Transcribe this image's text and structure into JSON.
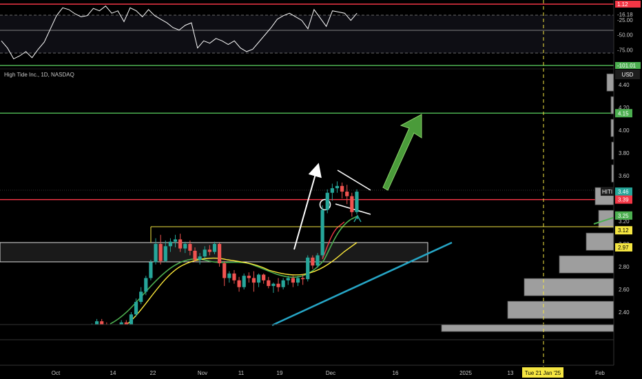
{
  "chart_data": {
    "type": "candlestick",
    "title": "High Tide Inc., 1D, NASDAQ",
    "currency": "USD",
    "ticker_label": "HITI",
    "price_axis": {
      "ylim": [
        2.25,
        4.55
      ],
      "ticks": [
        "4.40",
        "4.20",
        "4.00",
        "3.80",
        "3.60",
        "3.40",
        "3.20",
        "3.00",
        "2.80",
        "2.60",
        "2.40"
      ]
    },
    "x_axis_labels": [
      "Oct",
      "14",
      "22",
      "Nov",
      "11",
      "19",
      "Dec",
      "16",
      "2025",
      "13",
      "Feb"
    ],
    "crosshair_date": "Tue 21 Jan '25",
    "price_tags": [
      {
        "value": "4.15",
        "color": "#4caf50"
      },
      {
        "value": "3.46",
        "color": "#26a69a",
        "label": "HITI"
      },
      {
        "value": "3.39",
        "color": "#f23645"
      },
      {
        "value": "3.25",
        "color": "#4caf50"
      },
      {
        "value": "3.12",
        "color": "#f5e642"
      },
      {
        "value": "2.97",
        "color": "#f5e642"
      }
    ],
    "horizontal_lines": [
      {
        "value": 4.15,
        "color": "#4caf50"
      },
      {
        "value": 3.39,
        "color": "#f23645"
      },
      {
        "value": 3.12,
        "color": "#f5e642"
      }
    ],
    "candles": [
      [
        2.22,
        2.26,
        2.2,
        2.24
      ],
      [
        2.24,
        2.28,
        2.21,
        2.23
      ],
      [
        2.23,
        2.27,
        2.2,
        2.25
      ],
      [
        2.25,
        2.28,
        2.22,
        2.24
      ],
      [
        2.24,
        2.3,
        2.22,
        2.28
      ],
      [
        2.28,
        2.34,
        2.25,
        2.32
      ],
      [
        2.32,
        2.34,
        2.26,
        2.28
      ],
      [
        2.28,
        2.31,
        2.24,
        2.26
      ],
      [
        2.26,
        2.28,
        2.21,
        2.24
      ],
      [
        2.24,
        2.29,
        2.22,
        2.27
      ],
      [
        2.27,
        2.33,
        2.25,
        2.31
      ],
      [
        2.31,
        2.33,
        2.27,
        2.29
      ],
      [
        2.29,
        2.4,
        2.28,
        2.38
      ],
      [
        2.38,
        2.52,
        2.36,
        2.49
      ],
      [
        2.49,
        2.62,
        2.47,
        2.58
      ],
      [
        2.58,
        2.72,
        2.55,
        2.7
      ],
      [
        2.7,
        2.86,
        2.68,
        2.84
      ],
      [
        2.84,
        3.05,
        2.82,
        3.0
      ],
      [
        3.0,
        3.08,
        2.82,
        2.85
      ],
      [
        2.85,
        3.03,
        2.84,
        2.98
      ],
      [
        2.98,
        3.05,
        2.93,
        3.02
      ],
      [
        3.02,
        3.08,
        2.97,
        3.04
      ],
      [
        3.04,
        3.09,
        2.93,
        2.96
      ],
      [
        2.96,
        3.02,
        2.92,
        3.0
      ],
      [
        3.0,
        3.03,
        2.9,
        2.94
      ],
      [
        2.94,
        2.97,
        2.84,
        2.86
      ],
      [
        2.86,
        2.92,
        2.82,
        2.89
      ],
      [
        2.89,
        2.98,
        2.87,
        2.95
      ],
      [
        2.95,
        2.99,
        2.9,
        2.93
      ],
      [
        2.93,
        3.02,
        2.91,
        3.0
      ],
      [
        3.0,
        3.01,
        2.8,
        2.83
      ],
      [
        2.83,
        2.85,
        2.63,
        2.7
      ],
      [
        2.7,
        2.76,
        2.66,
        2.74
      ],
      [
        2.74,
        2.77,
        2.65,
        2.68
      ],
      [
        2.68,
        2.71,
        2.58,
        2.62
      ],
      [
        2.62,
        2.74,
        2.6,
        2.72
      ],
      [
        2.72,
        2.75,
        2.66,
        2.7
      ],
      [
        2.7,
        2.76,
        2.58,
        2.66
      ],
      [
        2.66,
        2.74,
        2.62,
        2.73
      ],
      [
        2.73,
        2.74,
        2.65,
        2.68
      ],
      [
        2.68,
        2.71,
        2.61,
        2.63
      ],
      [
        2.63,
        2.66,
        2.57,
        2.65
      ],
      [
        2.65,
        2.7,
        2.58,
        2.62
      ],
      [
        2.62,
        2.7,
        2.6,
        2.68
      ],
      [
        2.68,
        2.72,
        2.64,
        2.7
      ],
      [
        2.7,
        2.72,
        2.62,
        2.66
      ],
      [
        2.66,
        2.72,
        2.63,
        2.7
      ],
      [
        2.7,
        2.73,
        2.64,
        2.69
      ],
      [
        2.69,
        2.9,
        2.67,
        2.88
      ],
      [
        2.88,
        2.9,
        2.78,
        2.81
      ],
      [
        2.81,
        2.92,
        2.79,
        2.9
      ],
      [
        2.9,
        3.34,
        2.88,
        3.3
      ],
      [
        3.3,
        3.48,
        3.27,
        3.45
      ],
      [
        3.45,
        3.53,
        3.38,
        3.49
      ],
      [
        3.49,
        3.55,
        3.45,
        3.51
      ],
      [
        3.51,
        3.54,
        3.4,
        3.46
      ],
      [
        3.46,
        3.52,
        3.35,
        3.42
      ],
      [
        3.42,
        3.45,
        3.24,
        3.28
      ],
      [
        3.28,
        3.48,
        3.26,
        3.46
      ]
    ],
    "indicator": {
      "reference_levels": [
        "-16.18",
        "-25.00",
        "-50.00",
        "-75.00"
      ],
      "tags": [
        {
          "value": "1.12",
          "color": "#f23645"
        },
        {
          "value": "-101.01",
          "color": "#4caf50"
        }
      ],
      "values": [
        -60,
        -72,
        -90,
        -85,
        -78,
        -88,
        -74,
        -62,
        -40,
        -18,
        -5,
        -8,
        -15,
        -20,
        -18,
        -6,
        -10,
        -2,
        -14,
        -10,
        -28,
        -5,
        -10,
        -20,
        -8,
        -18,
        -24,
        -30,
        -38,
        -42,
        -34,
        -30,
        -72,
        -60,
        -64,
        -56,
        -60,
        -66,
        -60,
        -72,
        -78,
        -74,
        -62,
        -50,
        -38,
        -24,
        -18,
        -14,
        -20,
        -26,
        -40,
        -8,
        -22,
        -36,
        -10,
        -12,
        -14,
        -26,
        -14
      ]
    },
    "volume_profile": [
      {
        "price": 4.42,
        "width": 10
      },
      {
        "price": 4.22,
        "width": 4
      },
      {
        "price": 4.02,
        "width": 4
      },
      {
        "price": 3.82,
        "width": 3
      },
      {
        "price": 3.62,
        "width": 3
      },
      {
        "price": 3.42,
        "width": 27
      },
      {
        "price": 3.22,
        "width": 22
      },
      {
        "price": 3.02,
        "width": 40
      },
      {
        "price": 2.82,
        "width": 79
      },
      {
        "price": 2.62,
        "width": 130
      },
      {
        "price": 2.42,
        "width": 154
      },
      {
        "price": 2.26,
        "width": 250
      }
    ]
  }
}
